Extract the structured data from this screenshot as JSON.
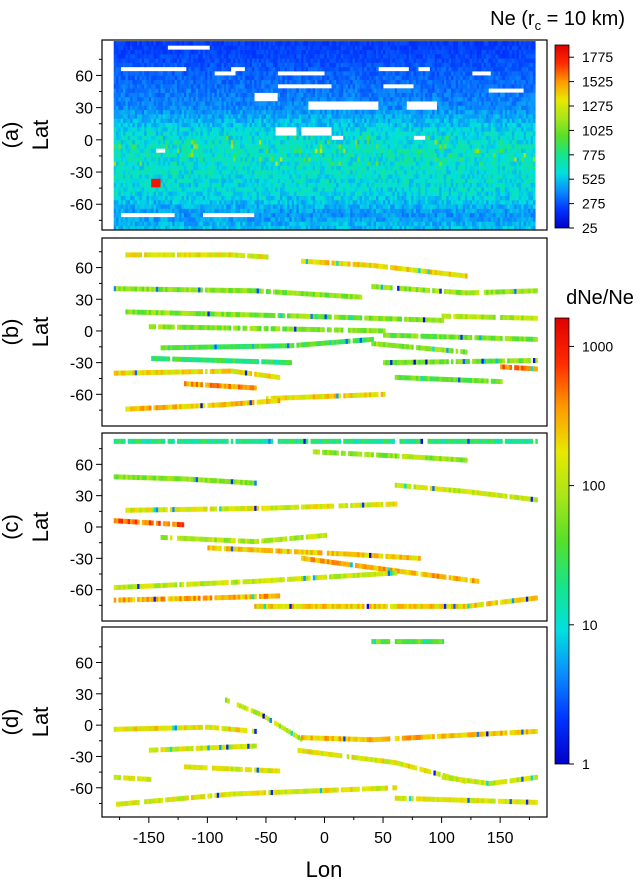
{
  "figure": {
    "xlabel": "Lon",
    "x_ticks": [
      -150,
      -100,
      -50,
      0,
      50,
      100,
      150
    ],
    "xlim": [
      -190,
      190
    ],
    "panels": [
      {
        "label": "(a)",
        "ylabel": "Lat",
        "y_ticks": [
          60,
          30,
          0,
          -30,
          -60
        ],
        "ylim": [
          -84,
          93
        ]
      },
      {
        "label": "(b)",
        "ylabel": "Lat",
        "y_ticks": [
          60,
          30,
          0,
          -30,
          -60
        ],
        "ylim": [
          -90,
          88
        ]
      },
      {
        "label": "(c)",
        "ylabel": "Lat",
        "y_ticks": [
          60,
          30,
          0,
          -30,
          -60
        ],
        "ylim": [
          -90,
          90
        ]
      },
      {
        "label": "(d)",
        "ylabel": "Lat",
        "y_ticks": [
          60,
          30,
          0,
          -30,
          -60
        ],
        "ylim": [
          -88,
          94
        ]
      }
    ]
  },
  "colorbars": {
    "ne": {
      "title": "Ne (r",
      "title_sub": "c",
      "title_rest": " = 10 km)",
      "scale": "linear",
      "range": [
        25,
        1900
      ],
      "tick_labels": [
        "1775",
        "1525",
        "1275",
        "1025",
        "775",
        "525",
        "275",
        "25"
      ],
      "tick_values": [
        1775,
        1525,
        1275,
        1025,
        775,
        525,
        275,
        25
      ]
    },
    "dne": {
      "title": "dNe/Ne",
      "scale": "log",
      "range": [
        1,
        1600
      ],
      "tick_labels": [
        "1000",
        "100",
        "10",
        "1"
      ],
      "tick_values": [
        1000,
        100,
        10,
        1
      ]
    }
  },
  "colormap": [
    "#0000c8",
    "#0033ff",
    "#0a8cff",
    "#00e0e0",
    "#17e58a",
    "#55e02a",
    "#a8e61a",
    "#e8e800",
    "#ff9a00",
    "#ff2a00",
    "#e00000"
  ],
  "chart_data": [
    {
      "type": "heatmap",
      "panel": "(a)",
      "title": "Ne (rc = 10 km)",
      "xlabel": "Lon",
      "ylabel": "Lat",
      "xlim": [
        -180,
        180
      ],
      "ylim": [
        -84,
        93
      ],
      "value_range": [
        25,
        1900
      ],
      "lat_profile": [
        {
          "lat": 88,
          "ne": 230
        },
        {
          "lat": 60,
          "ne": 310
        },
        {
          "lat": 30,
          "ne": 400
        },
        {
          "lat": 10,
          "ne": 560
        },
        {
          "lat": -10,
          "ne": 640
        },
        {
          "lat": -30,
          "ne": 620
        },
        {
          "lat": -50,
          "ne": 580
        },
        {
          "lat": -70,
          "ne": 420
        },
        {
          "lat": -80,
          "ne": 500
        }
      ],
      "gaps": [
        {
          "lat": 86,
          "lon": [
            -135,
            -100
          ]
        },
        {
          "lat": 66,
          "lon": [
            -175,
            -120
          ]
        },
        {
          "lat": 66,
          "lon": [
            -80,
            -70
          ]
        },
        {
          "lat": 66,
          "lon": [
            45,
            70
          ]
        },
        {
          "lat": 66,
          "lon": [
            80,
            88
          ]
        },
        {
          "lat": 62,
          "lon": [
            -95,
            -78
          ]
        },
        {
          "lat": 62,
          "lon": [
            -40,
            -2
          ]
        },
        {
          "lat": 62,
          "lon": [
            125,
            140
          ]
        },
        {
          "lat": 50,
          "lon": [
            -40,
            5
          ]
        },
        {
          "lat": 50,
          "lon": [
            50,
            75
          ]
        },
        {
          "lat": 46,
          "lon": [
            140,
            168
          ]
        },
        {
          "lat": 40,
          "lon": [
            -60,
            -42
          ]
        },
        {
          "lat": 32,
          "lon": [
            -15,
            45
          ]
        },
        {
          "lat": 32,
          "lon": [
            70,
            95
          ]
        },
        {
          "lat": 8,
          "lon": [
            -42,
            -25
          ]
        },
        {
          "lat": 8,
          "lon": [
            -20,
            5
          ]
        },
        {
          "lat": 2,
          "lon": [
            5,
            15
          ]
        },
        {
          "lat": 2,
          "lon": [
            75,
            85
          ]
        },
        {
          "lat": -10,
          "lon": [
            -145,
            -138
          ]
        },
        {
          "lat": -70,
          "lon": [
            -175,
            -130
          ]
        },
        {
          "lat": -70,
          "lon": [
            -105,
            -62
          ]
        }
      ],
      "notable": [
        {
          "lat": -40,
          "lon": -145,
          "ne": 1800
        }
      ]
    },
    {
      "type": "heatmap",
      "panel": "(b)",
      "xlabel": "Lon",
      "ylabel": "Lat",
      "xlim": [
        -180,
        180
      ],
      "ylim": [
        -90,
        88
      ],
      "value_scale": "log",
      "value_range": [
        1,
        1600
      ],
      "tracks": [
        {
          "lat": [
            72,
            72,
            70
          ],
          "lon": [
            -170,
            -80,
            -50
          ],
          "v": 150
        },
        {
          "lat": [
            66,
            62,
            52
          ],
          "lon": [
            -20,
            40,
            120
          ],
          "v": 190
        },
        {
          "lat": [
            40,
            38,
            32
          ],
          "lon": [
            -180,
            -60,
            30
          ],
          "v": 60
        },
        {
          "lat": [
            42,
            36,
            38
          ],
          "lon": [
            40,
            120,
            180
          ],
          "v": 70
        },
        {
          "lat": [
            18,
            14,
            10
          ],
          "lon": [
            -170,
            -20,
            100
          ],
          "v": 60
        },
        {
          "lat": [
            14,
            12
          ],
          "lon": [
            100,
            180
          ],
          "v": 90
        },
        {
          "lat": [
            4,
            2,
            0
          ],
          "lon": [
            -150,
            -40,
            50
          ],
          "v": 60
        },
        {
          "lat": [
            -4,
            -8
          ],
          "lon": [
            50,
            180
          ],
          "v": 50
        },
        {
          "lat": [
            -16,
            -14,
            -8
          ],
          "lon": [
            -140,
            -30,
            40
          ],
          "v": 35
        },
        {
          "lat": [
            -12,
            -20
          ],
          "lon": [
            40,
            120
          ],
          "v": 60
        },
        {
          "lat": [
            -26,
            -30
          ],
          "lon": [
            -150,
            -30
          ],
          "v": 25
        },
        {
          "lat": [
            -30,
            -28
          ],
          "lon": [
            50,
            180
          ],
          "v": 55
        },
        {
          "lat": [
            -40,
            -38,
            -44
          ],
          "lon": [
            -180,
            -80,
            -40
          ],
          "v": 170
        },
        {
          "lat": [
            -50,
            -54
          ],
          "lon": [
            -120,
            -60
          ],
          "v": 350
        },
        {
          "lat": [
            -44,
            -48
          ],
          "lon": [
            60,
            150
          ],
          "v": 45
        },
        {
          "lat": [
            -64,
            -60
          ],
          "lon": [
            -50,
            50
          ],
          "v": 200
        },
        {
          "lat": [
            -74,
            -70,
            -66
          ],
          "lon": [
            -170,
            -90,
            -40
          ],
          "v": 250
        },
        {
          "lat": [
            -34,
            -36
          ],
          "lon": [
            150,
            180
          ],
          "v": 450
        }
      ]
    },
    {
      "type": "heatmap",
      "panel": "(c)",
      "xlabel": "Lon",
      "ylabel": "Lat",
      "xlim": [
        -180,
        180
      ],
      "ylim": [
        -90,
        90
      ],
      "value_scale": "log",
      "value_range": [
        1,
        1600
      ],
      "tracks": [
        {
          "lat": [
            82,
            82
          ],
          "lon": [
            -180,
            180
          ],
          "v": 20
        },
        {
          "lat": [
            72,
            68,
            64
          ],
          "lon": [
            -10,
            60,
            120
          ],
          "v": 70
        },
        {
          "lat": [
            48,
            46,
            42
          ],
          "lon": [
            -180,
            -120,
            -60
          ],
          "v": 60
        },
        {
          "lat": [
            40,
            34,
            26
          ],
          "lon": [
            60,
            120,
            180
          ],
          "v": 120
        },
        {
          "lat": [
            16,
            18,
            22
          ],
          "lon": [
            -170,
            -50,
            60
          ],
          "v": 140
        },
        {
          "lat": [
            6,
            2
          ],
          "lon": [
            -180,
            -120
          ],
          "v": 500
        },
        {
          "lat": [
            -10,
            -14,
            -8
          ],
          "lon": [
            -140,
            -60,
            0
          ],
          "v": 90
        },
        {
          "lat": [
            -20,
            -26,
            -30
          ],
          "lon": [
            -100,
            20,
            80
          ],
          "v": 220
        },
        {
          "lat": [
            -30,
            -42,
            -52
          ],
          "lon": [
            -20,
            60,
            130
          ],
          "v": 280
        },
        {
          "lat": [
            -58,
            -52,
            -44
          ],
          "lon": [
            -180,
            -60,
            60
          ],
          "v": 110
        },
        {
          "lat": [
            -70,
            -68,
            -66
          ],
          "lon": [
            -180,
            -100,
            -40
          ],
          "v": 300
        },
        {
          "lat": [
            -76,
            -76,
            -68
          ],
          "lon": [
            -60,
            120,
            180
          ],
          "v": 210
        }
      ]
    },
    {
      "type": "heatmap",
      "panel": "(d)",
      "xlabel": "Lon",
      "ylabel": "Lat",
      "xlim": [
        -180,
        180
      ],
      "ylim": [
        -88,
        94
      ],
      "value_scale": "log",
      "value_range": [
        1,
        1600
      ],
      "tracks": [
        {
          "lat": [
            24,
            10,
            -14
          ],
          "lon": [
            -85,
            -55,
            -20
          ],
          "v": 90
        },
        {
          "lat": [
            -4,
            -2,
            -6
          ],
          "lon": [
            -180,
            -100,
            -60
          ],
          "v": 180
        },
        {
          "lat": [
            -12,
            -14,
            -6
          ],
          "lon": [
            -20,
            40,
            180
          ],
          "v": 250
        },
        {
          "lat": [
            -24,
            -20
          ],
          "lon": [
            -150,
            -60
          ],
          "v": 120
        },
        {
          "lat": [
            -24,
            -36,
            -54
          ],
          "lon": [
            -25,
            60,
            120
          ],
          "v": 160
        },
        {
          "lat": [
            -40,
            -44
          ],
          "lon": [
            -120,
            -40
          ],
          "v": 140
        },
        {
          "lat": [
            -50,
            -56,
            -50
          ],
          "lon": [
            100,
            140,
            180
          ],
          "v": 120
        },
        {
          "lat": [
            -50,
            -52
          ],
          "lon": [
            -180,
            -150
          ],
          "v": 130
        },
        {
          "lat": [
            -76,
            -66,
            -60
          ],
          "lon": [
            -180,
            -80,
            60
          ],
          "v": 150
        },
        {
          "lat": [
            -70,
            -74
          ],
          "lon": [
            60,
            180
          ],
          "v": 140
        },
        {
          "lat": [
            80,
            80
          ],
          "lon": [
            40,
            100
          ],
          "v": 40
        }
      ]
    }
  ]
}
